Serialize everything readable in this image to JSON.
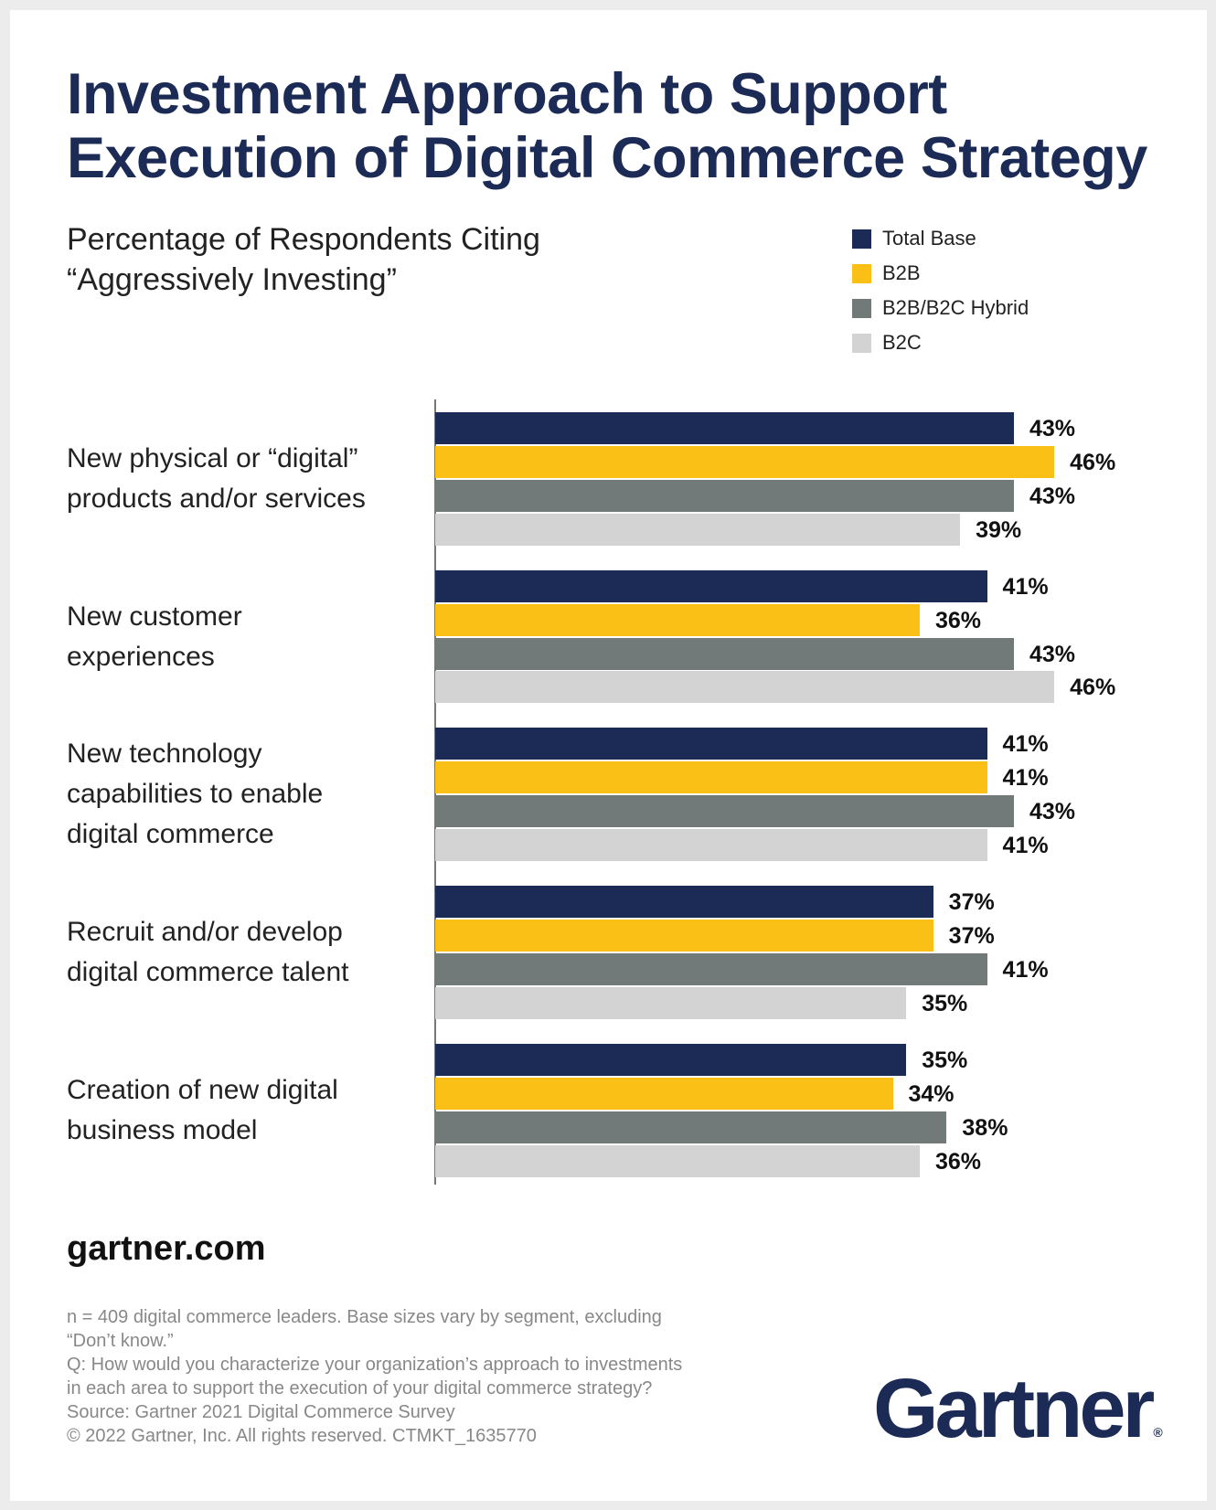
{
  "title_lines": [
    "Investment Approach to Support",
    "Execution of Digital Commerce Strategy"
  ],
  "subtitle_lines": [
    "Percentage of Respondents Citing",
    "“Aggressively Investing”"
  ],
  "site": "gartner.com",
  "footnote": [
    "n = 409 digital commerce leaders. Base sizes vary by segment, excluding",
    "“Don’t know.”",
    "Q: How would you characterize your organization’s approach to investments",
    "in each area to support the execution of your digital commerce strategy?",
    "Source: Gartner 2021 Digital Commerce Survey",
    "© 2022 Gartner, Inc. All rights reserved. CTMKT_1635770"
  ],
  "logo": {
    "text": "Gartner",
    "mark": "®"
  },
  "chart_data": {
    "type": "bar",
    "orientation": "horizontal",
    "title": "Investment Approach to Support Execution of Digital Commerce Strategy",
    "subtitle": "Percentage of Respondents Citing “Aggressively Investing”",
    "legend_position": "top-right",
    "grid": false,
    "xlim": [
      0,
      46
    ],
    "value_suffix": "%",
    "categories": [
      [
        "New physical or “digital”",
        "products and/or services"
      ],
      [
        "New customer",
        "experiences"
      ],
      [
        "New technology",
        "capabilities to enable",
        "digital commerce"
      ],
      [
        "Recruit and/or develop",
        "digital commerce talent"
      ],
      [
        "Creation of new digital",
        "business model"
      ]
    ],
    "series": [
      {
        "name": "Total Base",
        "color": "#1b2b55",
        "values": [
          43,
          41,
          41,
          37,
          35
        ]
      },
      {
        "name": "B2B",
        "color": "#fbc015",
        "values": [
          46,
          36,
          41,
          37,
          34
        ]
      },
      {
        "name": "B2B/B2C Hybrid",
        "color": "#717a78",
        "values": [
          43,
          43,
          43,
          41,
          38
        ]
      },
      {
        "name": "B2C",
        "color": "#d3d3d3",
        "values": [
          39,
          46,
          41,
          35,
          36
        ]
      }
    ]
  }
}
